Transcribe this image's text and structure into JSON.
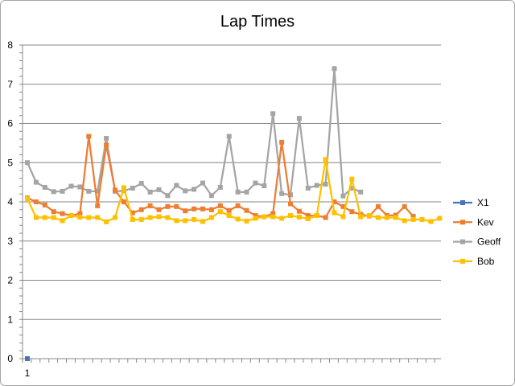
{
  "chart_data": {
    "type": "line",
    "title": "Lap Times",
    "xlabel": "",
    "ylabel": "",
    "ylim": [
      0,
      8
    ],
    "yticks": [
      0,
      1,
      2,
      3,
      4,
      5,
      6,
      7,
      8
    ],
    "x_tick_label": "1",
    "grid": "horizontal",
    "legend_position": "right",
    "series": [
      {
        "name": "X1",
        "color": "#4472C4",
        "values": [
          0
        ]
      },
      {
        "name": "Kev",
        "color": "#ED7D31",
        "values": [
          4.1,
          4.0,
          3.92,
          3.75,
          3.7,
          3.65,
          3.7,
          5.67,
          3.9,
          5.45,
          4.3,
          4.0,
          3.72,
          3.8,
          3.9,
          3.8,
          3.88,
          3.88,
          3.77,
          3.82,
          3.82,
          3.8,
          3.9,
          3.78,
          3.9,
          3.78,
          3.65,
          3.62,
          3.7,
          5.52,
          3.95,
          3.76,
          3.65,
          3.65,
          3.6,
          4.0,
          3.88,
          3.75,
          3.68,
          3.64,
          3.88,
          3.65,
          3.66,
          3.88,
          3.63
        ]
      },
      {
        "name": "Geoff",
        "color": "#A5A5A5",
        "values": [
          5.0,
          4.5,
          4.37,
          4.26,
          4.27,
          4.4,
          4.38,
          4.27,
          4.27,
          5.62,
          4.27,
          4.28,
          4.35,
          4.47,
          4.25,
          4.31,
          4.16,
          4.42,
          4.28,
          4.32,
          4.48,
          4.16,
          4.37,
          5.67,
          4.25,
          4.25,
          4.48,
          4.41,
          6.25,
          4.21,
          4.18,
          6.13,
          4.35,
          4.42,
          4.45,
          7.4,
          4.15,
          4.35,
          4.25
        ]
      },
      {
        "name": "Bob",
        "color": "#FFC000",
        "values": [
          4.08,
          3.6,
          3.6,
          3.6,
          3.52,
          3.65,
          3.61,
          3.6,
          3.6,
          3.49,
          3.6,
          4.36,
          3.55,
          3.55,
          3.6,
          3.62,
          3.6,
          3.52,
          3.52,
          3.55,
          3.5,
          3.6,
          3.75,
          3.65,
          3.56,
          3.51,
          3.58,
          3.62,
          3.62,
          3.58,
          3.65,
          3.61,
          3.57,
          3.65,
          5.08,
          3.72,
          3.62,
          4.58,
          3.62,
          3.65,
          3.6,
          3.6,
          3.6,
          3.52,
          3.55,
          3.55,
          3.5,
          3.58
        ]
      }
    ]
  }
}
